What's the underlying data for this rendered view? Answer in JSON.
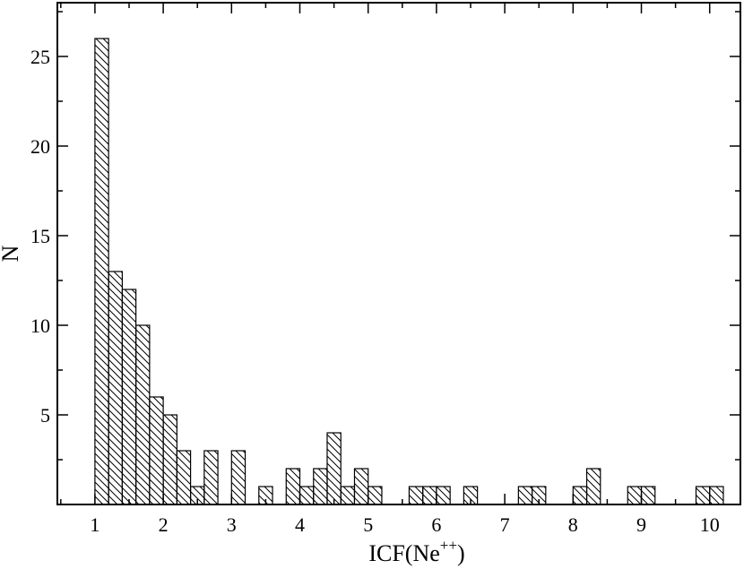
{
  "chart_data": {
    "type": "bar",
    "xlabel": "ICF(Ne",
    "xlabel_sup": "++",
    "xlabel_suffix": ")",
    "ylabel": "N",
    "xlim": [
      0.45,
      10.45
    ],
    "ylim": [
      0,
      28
    ],
    "x_ticks": [
      "1",
      "2",
      "3",
      "4",
      "5",
      "6",
      "7",
      "8",
      "9",
      "10"
    ],
    "y_ticks": [
      "5",
      "10",
      "15",
      "20",
      "25"
    ],
    "bin_width": 0.2,
    "bins": [
      {
        "x": 1.1,
        "n": 26
      },
      {
        "x": 1.3,
        "n": 13
      },
      {
        "x": 1.5,
        "n": 12
      },
      {
        "x": 1.7,
        "n": 10
      },
      {
        "x": 1.9,
        "n": 6
      },
      {
        "x": 2.1,
        "n": 5
      },
      {
        "x": 2.3,
        "n": 3
      },
      {
        "x": 2.5,
        "n": 1
      },
      {
        "x": 2.7,
        "n": 3
      },
      {
        "x": 3.1,
        "n": 3
      },
      {
        "x": 3.5,
        "n": 1
      },
      {
        "x": 3.9,
        "n": 2
      },
      {
        "x": 4.1,
        "n": 1
      },
      {
        "x": 4.3,
        "n": 2
      },
      {
        "x": 4.5,
        "n": 4
      },
      {
        "x": 4.7,
        "n": 1
      },
      {
        "x": 4.9,
        "n": 2
      },
      {
        "x": 5.1,
        "n": 1
      },
      {
        "x": 5.7,
        "n": 1
      },
      {
        "x": 5.9,
        "n": 1
      },
      {
        "x": 6.1,
        "n": 1
      },
      {
        "x": 6.5,
        "n": 1
      },
      {
        "x": 7.3,
        "n": 1
      },
      {
        "x": 7.5,
        "n": 1
      },
      {
        "x": 8.1,
        "n": 1
      },
      {
        "x": 8.3,
        "n": 2
      },
      {
        "x": 8.9,
        "n": 1
      },
      {
        "x": 9.1,
        "n": 1
      },
      {
        "x": 9.9,
        "n": 1
      },
      {
        "x": 10.1,
        "n": 1
      }
    ],
    "bar_fill": "hatched",
    "colors": {
      "stroke": "#000000",
      "background": "#ffffff"
    },
    "grid": false,
    "legend": "none"
  }
}
